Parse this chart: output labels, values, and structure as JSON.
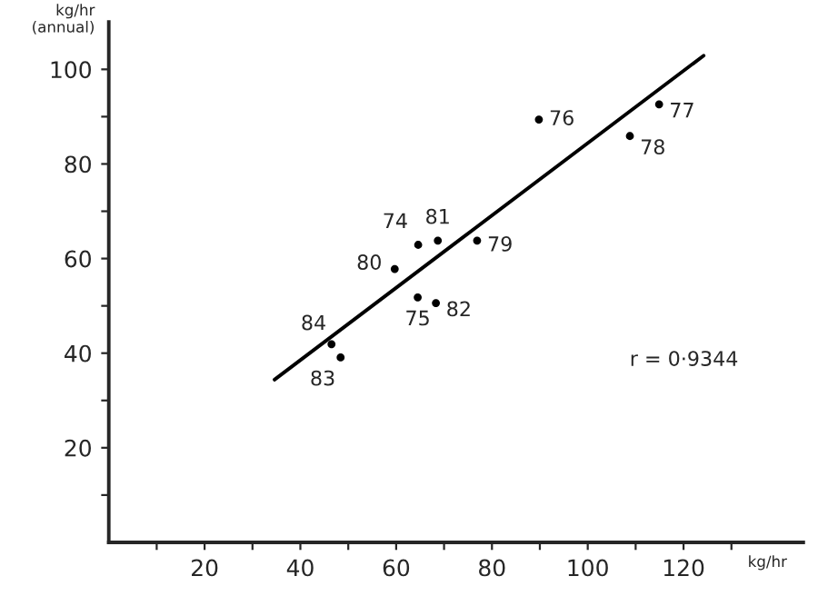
{
  "chart_data": {
    "type": "scatter",
    "xlabel": "kg/hr",
    "ylabel": "kg/hr\n(annual)",
    "xlim": [
      0,
      145
    ],
    "ylim": [
      0,
      110
    ],
    "xticks": [
      {
        "value": 10,
        "label": null
      },
      20,
      {
        "value": 30,
        "label": null
      },
      40,
      {
        "value": 50,
        "label": null
      },
      60,
      {
        "value": 70,
        "label": null
      },
      80,
      {
        "value": 90,
        "label": null
      },
      100,
      {
        "value": 110,
        "label": null
      },
      120,
      {
        "value": 130,
        "label": null
      }
    ],
    "yticks": [
      {
        "value": 10,
        "label": null
      },
      20,
      {
        "value": 30,
        "label": null
      },
      40,
      {
        "value": 50,
        "label": null
      },
      60,
      {
        "value": 70,
        "label": null
      },
      80,
      {
        "value": 90,
        "label": null
      },
      100
    ],
    "grid": false,
    "legend": false,
    "marker": "circle",
    "series": [
      {
        "color": "#000000",
        "x": [
          89.8,
          114.9,
          108.8,
          68.7,
          64.6,
          76.9,
          59.7,
          64.5,
          68.3,
          46.5,
          48.4
        ],
        "values": [
          89.4,
          92.6,
          85.9,
          63.8,
          62.9,
          63.8,
          57.8,
          51.8,
          50.6,
          41.9,
          39.1
        ]
      },
      {
        "type": "line",
        "marker": "none",
        "color": "#000000",
        "x": [
          34.6,
          124.2
        ],
        "values": [
          34.4,
          102.9
        ]
      }
    ],
    "annotations": [
      {
        "text": "76",
        "x": 89.8,
        "y": 89.4
      },
      {
        "text": "77",
        "x": 114.9,
        "y": 92.6
      },
      {
        "text": "78",
        "x": 108.8,
        "y": 85.9
      },
      {
        "text": "81",
        "x": 68.7,
        "y": 63.8
      },
      {
        "text": "74",
        "x": 64.6,
        "y": 62.9
      },
      {
        "text": "79",
        "x": 76.9,
        "y": 63.8
      },
      {
        "text": "80",
        "x": 59.7,
        "y": 57.8
      },
      {
        "text": "75",
        "x": 64.5,
        "y": 51.8
      },
      {
        "text": "82",
        "x": 68.3,
        "y": 50.6
      },
      {
        "text": "84",
        "x": 46.5,
        "y": 41.9
      },
      {
        "text": "83",
        "x": 48.4,
        "y": 39.1
      },
      "r = 0·9344"
    ]
  }
}
